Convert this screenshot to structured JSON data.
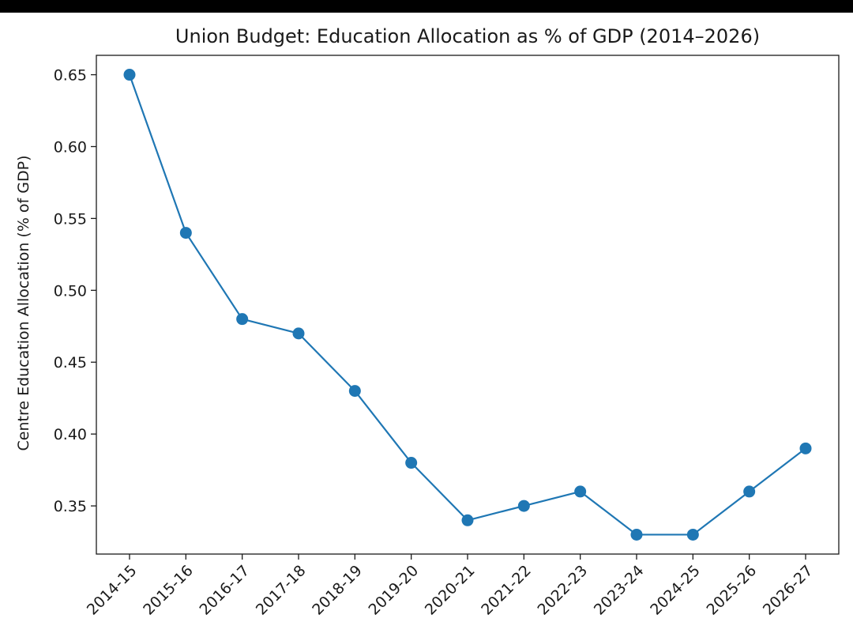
{
  "chart_data": {
    "type": "line",
    "title": "Union Budget: Education Allocation as % of GDP (2014–2026)",
    "xlabel": "",
    "ylabel": "Centre Education Allocation (% of GDP)",
    "categories": [
      "2014-15",
      "2015-16",
      "2016-17",
      "2017-18",
      "2018-19",
      "2019-20",
      "2020-21",
      "2021-22",
      "2022-23",
      "2023-24",
      "2024-25",
      "2025-26",
      "2026-27"
    ],
    "series": [
      {
        "values": [
          0.65,
          0.54,
          0.48,
          0.47,
          0.43,
          0.38,
          0.34,
          0.35,
          0.36,
          0.33,
          0.33,
          0.36,
          0.39
        ]
      }
    ],
    "yticks": [
      "0.35",
      "0.40",
      "0.45",
      "0.50",
      "0.55",
      "0.60",
      "0.65"
    ],
    "ylim": [
      0.3165,
      0.6635
    ],
    "grid": false,
    "legend": "none",
    "color": "#1f77b4"
  }
}
